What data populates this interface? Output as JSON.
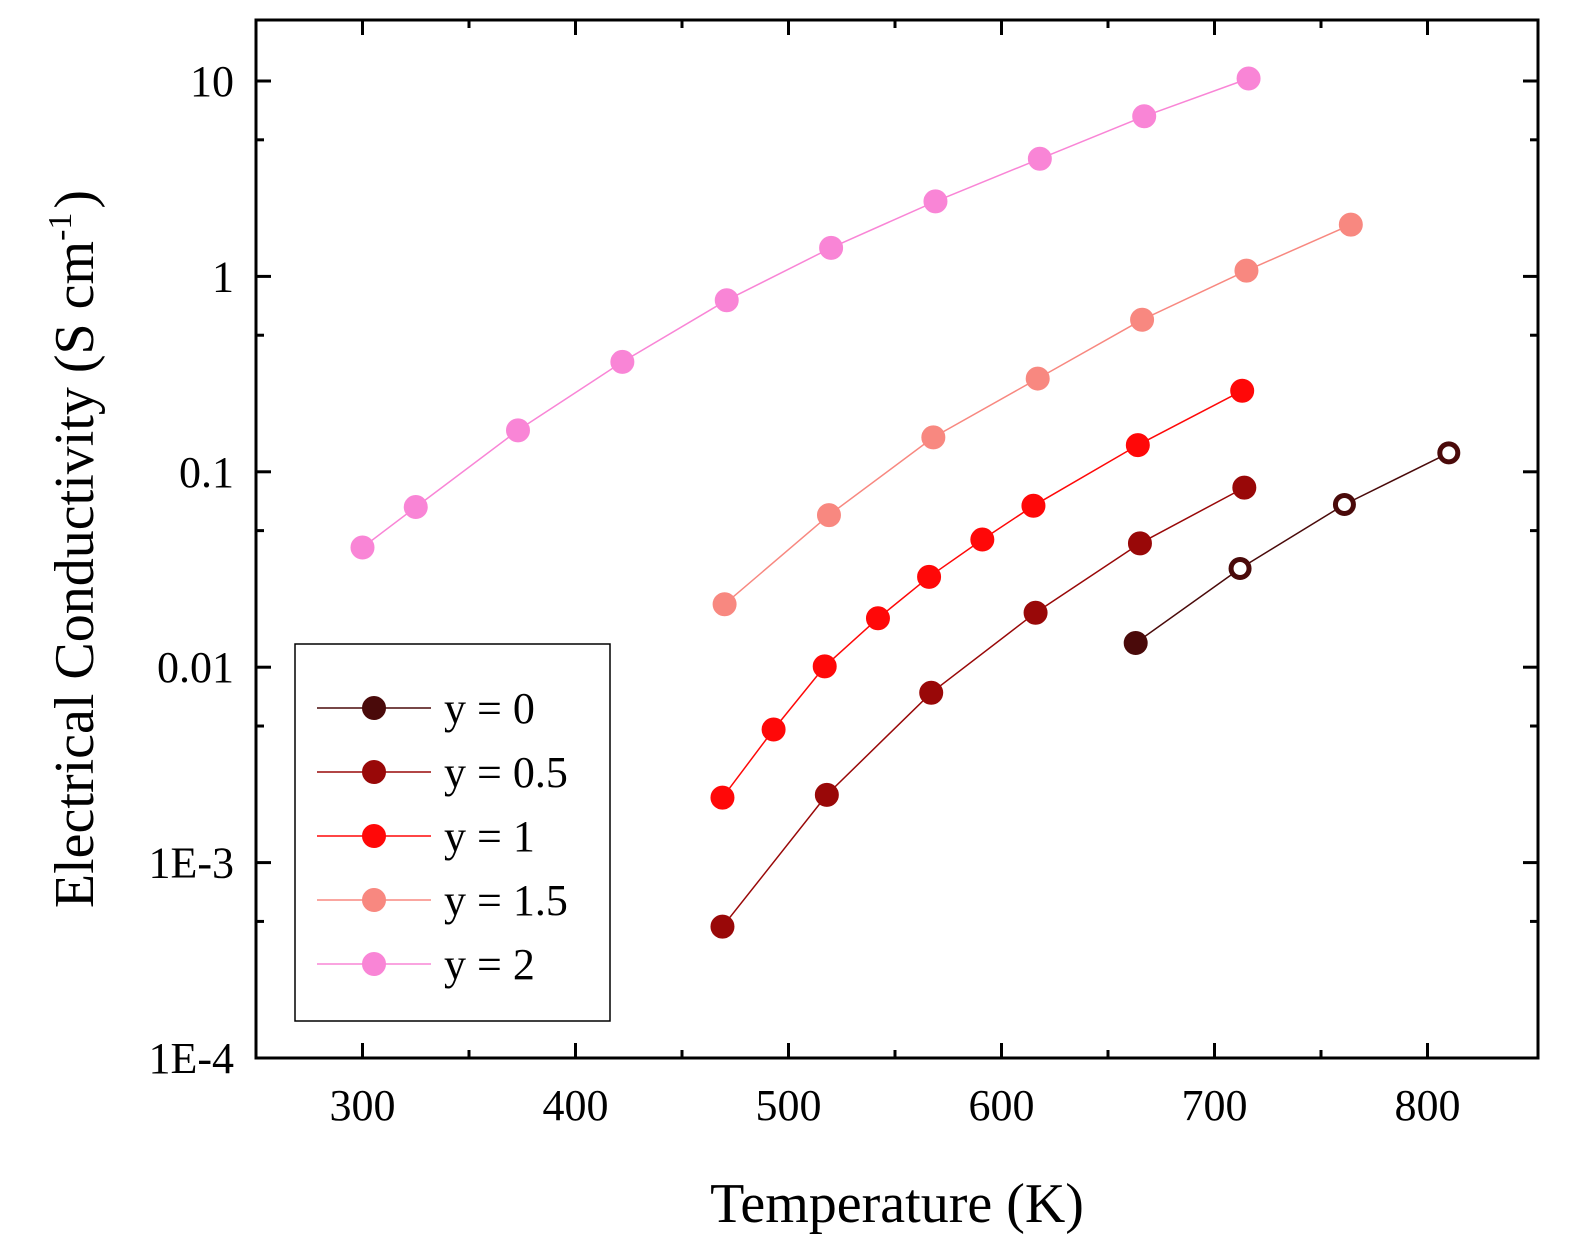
{
  "chart_data": {
    "type": "scatter",
    "title": "",
    "xlabel": "Temperature (K)",
    "ylabel": "Electrical Conductivity (S cm",
    "ylabel_superscript": "-1",
    "ylabel_suffix": ")",
    "xlim": [
      250,
      850
    ],
    "ylim": [
      0.0001,
      20
    ],
    "yscale": "log",
    "grid": false,
    "legend_position": "bottom-left",
    "x_ticks": [
      {
        "value": 300,
        "label": "300"
      },
      {
        "value": 400,
        "label": "400"
      },
      {
        "value": 500,
        "label": "500"
      },
      {
        "value": 600,
        "label": "600"
      },
      {
        "value": 700,
        "label": "700"
      },
      {
        "value": 800,
        "label": "800"
      }
    ],
    "y_ticks": [
      {
        "value": 0.0001,
        "label": "1E-4"
      },
      {
        "value": 0.001,
        "label": "1E-3"
      },
      {
        "value": 0.01,
        "label": "0.01"
      },
      {
        "value": 0.1,
        "label": "0.1"
      },
      {
        "value": 1,
        "label": "1"
      },
      {
        "value": 10,
        "label": "10"
      }
    ],
    "series": [
      {
        "name": "y = 0",
        "color": "#4a0a0a",
        "x": [
          663,
          712,
          761,
          810
        ],
        "y": [
          0.0133,
          0.032,
          0.068,
          0.125
        ],
        "hollow": [
          false,
          true,
          true,
          true
        ]
      },
      {
        "name": "y = 0.5",
        "color": "#990808",
        "x": [
          469,
          518,
          567,
          616,
          665,
          714
        ],
        "y": [
          0.00047,
          0.00222,
          0.0074,
          0.019,
          0.043,
          0.083
        ],
        "hollow": [
          false,
          false,
          false,
          false,
          false,
          false
        ]
      },
      {
        "name": "y = 1",
        "color": "#ff0808",
        "x": [
          469,
          493,
          517,
          542,
          566,
          591,
          615,
          664,
          713
        ],
        "y": [
          0.00215,
          0.0048,
          0.0101,
          0.0178,
          0.029,
          0.045,
          0.067,
          0.137,
          0.26
        ],
        "hollow": [
          false,
          false,
          false,
          false,
          false,
          false,
          false,
          false,
          false
        ]
      },
      {
        "name": "y = 1.5",
        "color": "#f88880",
        "x": [
          470,
          519,
          568,
          617,
          666,
          715,
          764
        ],
        "y": [
          0.021,
          0.06,
          0.15,
          0.3,
          0.6,
          1.07,
          1.84
        ],
        "hollow": [
          false,
          false,
          false,
          false,
          false,
          false,
          false
        ]
      },
      {
        "name": "y = 2",
        "color": "#f985d6",
        "x": [
          300,
          325,
          373,
          422,
          471,
          520,
          569,
          618,
          667,
          716
        ],
        "y": [
          0.041,
          0.066,
          0.163,
          0.365,
          0.755,
          1.4,
          2.42,
          4.0,
          6.6,
          10.3
        ],
        "hollow": [
          false,
          false,
          false,
          false,
          false,
          false,
          false,
          false,
          false,
          false
        ]
      }
    ]
  }
}
